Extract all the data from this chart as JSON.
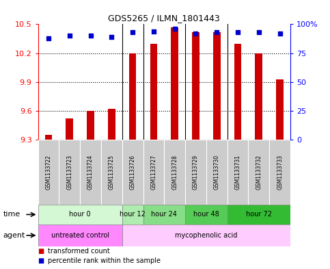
{
  "title": "GDS5265 / ILMN_1801443",
  "samples": [
    "GSM1133722",
    "GSM1133723",
    "GSM1133724",
    "GSM1133725",
    "GSM1133726",
    "GSM1133727",
    "GSM1133728",
    "GSM1133729",
    "GSM1133730",
    "GSM1133731",
    "GSM1133732",
    "GSM1133733"
  ],
  "transformed_counts": [
    9.35,
    9.52,
    9.6,
    9.62,
    10.2,
    10.3,
    10.47,
    10.42,
    10.42,
    10.3,
    10.2,
    9.93
  ],
  "percentile_ranks": [
    88,
    90,
    90,
    89,
    93,
    94,
    96,
    92,
    93,
    93,
    93,
    92
  ],
  "ylim_left": [
    9.3,
    10.5
  ],
  "ylim_right": [
    0,
    100
  ],
  "yticks_left": [
    9.3,
    9.6,
    9.9,
    10.2,
    10.5
  ],
  "yticks_right": [
    0,
    25,
    50,
    75,
    100
  ],
  "ytick_labels_right": [
    "0",
    "25",
    "50",
    "75",
    "100%"
  ],
  "time_groups": [
    {
      "label": "hour 0",
      "start": 0,
      "end": 4,
      "color": "#d4f7d4"
    },
    {
      "label": "hour 12",
      "start": 4,
      "end": 5,
      "color": "#b0ebb0"
    },
    {
      "label": "hour 24",
      "start": 5,
      "end": 7,
      "color": "#88dd88"
    },
    {
      "label": "hour 48",
      "start": 7,
      "end": 9,
      "color": "#55cc55"
    },
    {
      "label": "hour 72",
      "start": 9,
      "end": 12,
      "color": "#33bb33"
    }
  ],
  "agent_groups": [
    {
      "label": "untreated control",
      "start": 0,
      "end": 4,
      "color": "#ff88ff"
    },
    {
      "label": "mycophenolic acid",
      "start": 4,
      "end": 12,
      "color": "#ffccff"
    }
  ],
  "bar_color": "#cc0000",
  "dot_color": "#0000cc",
  "legend_red_label": "transformed count",
  "legend_blue_label": "percentile rank within the sample"
}
